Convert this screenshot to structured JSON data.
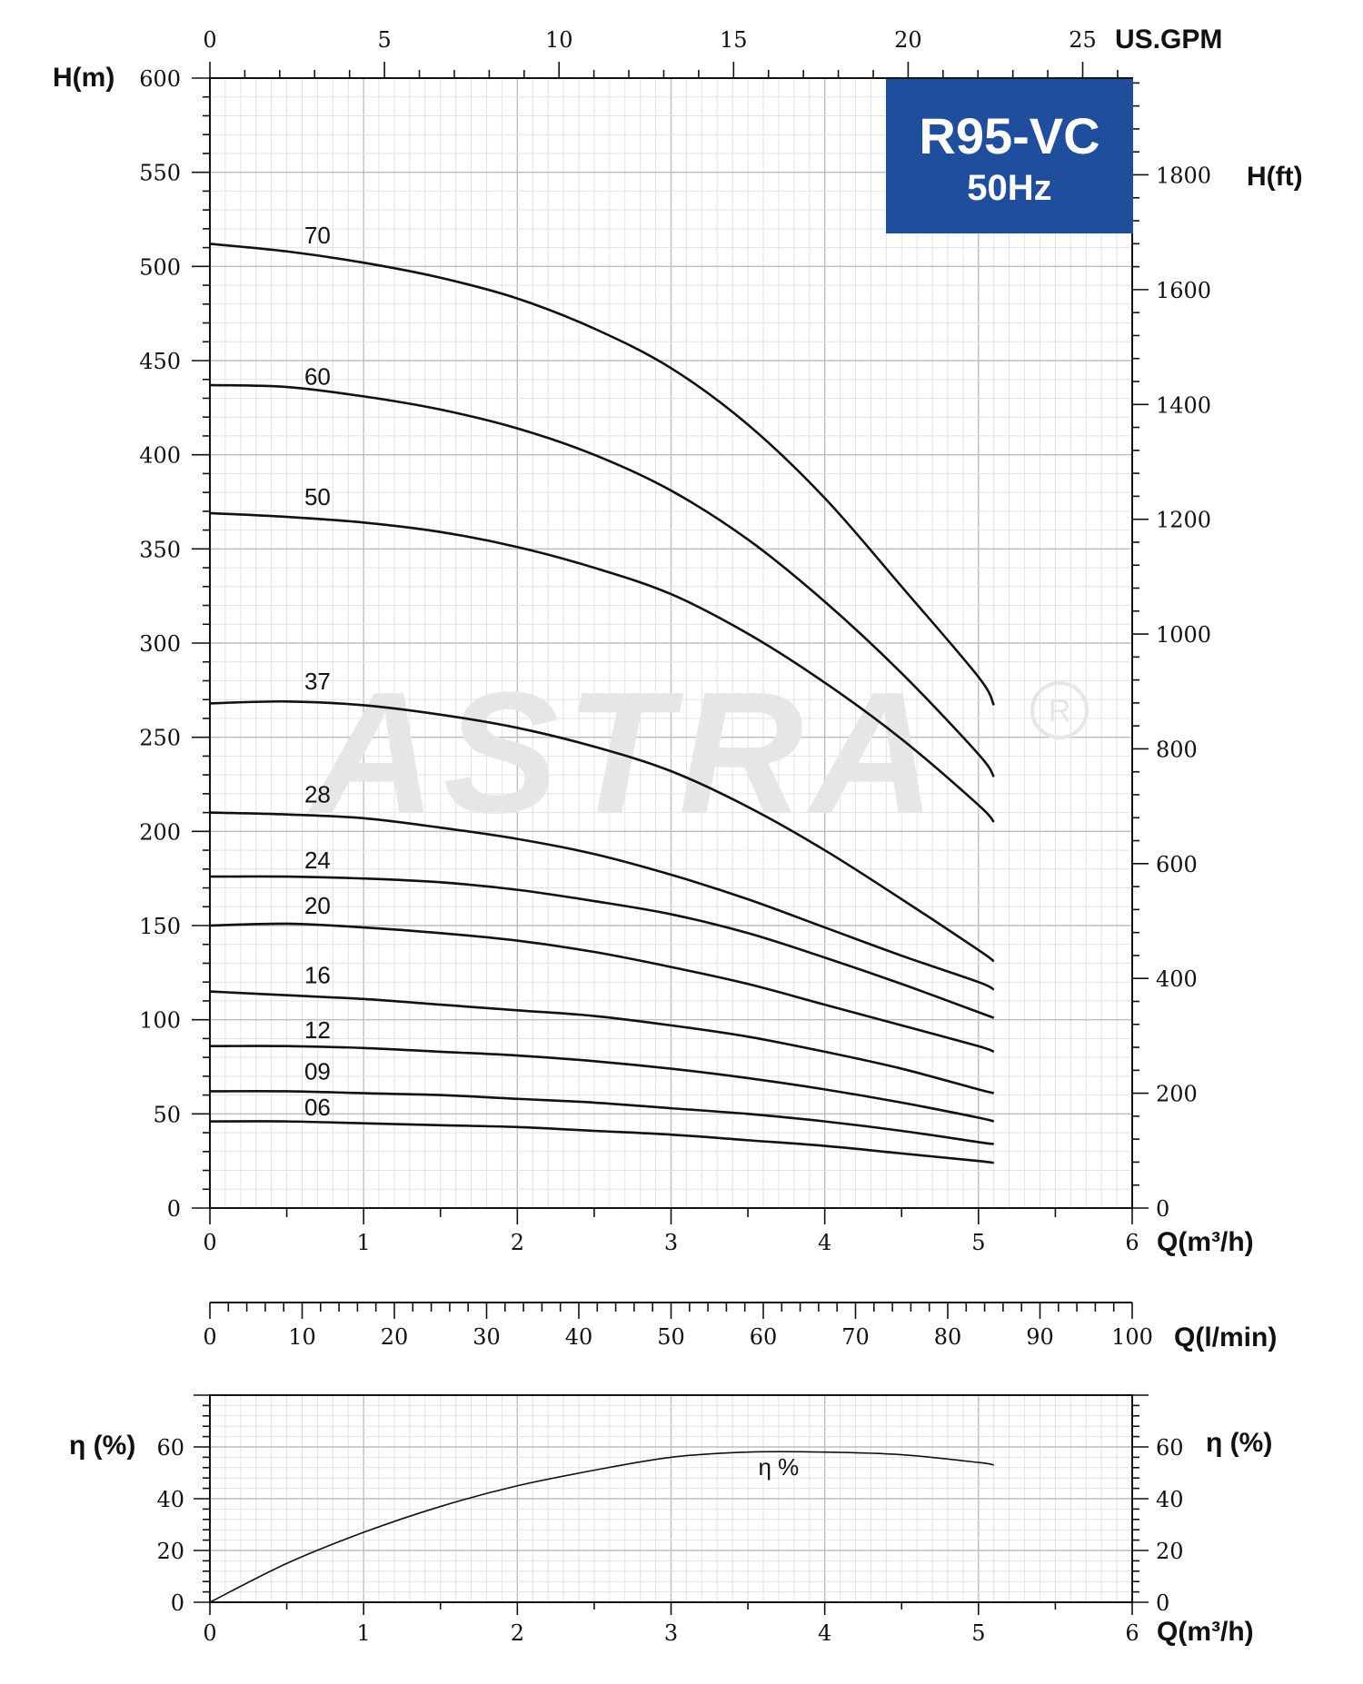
{
  "chart_data": [
    {
      "type": "line",
      "title": "R95-VC",
      "subtitle": "50Hz",
      "xlabel": "Q(m³/h)",
      "ylabel": "H(m)",
      "ylabel_right": "H(ft)",
      "xlabel_top": "US.GPM",
      "xlabel_lmin": "Q(l/min)",
      "xlim": [
        0,
        6
      ],
      "ylim": [
        0,
        600
      ],
      "x_ticks": [
        0,
        1,
        2,
        3,
        4,
        5,
        6
      ],
      "y_ticks": [
        0,
        50,
        100,
        150,
        200,
        250,
        300,
        350,
        400,
        450,
        500,
        550,
        600
      ],
      "ft_ticks": [
        0,
        200,
        400,
        600,
        800,
        1000,
        1200,
        1400,
        1600,
        1800
      ],
      "gpm_ticks": [
        0,
        5,
        10,
        15,
        20,
        25
      ],
      "lmin_ticks": [
        0,
        10,
        20,
        30,
        40,
        50,
        60,
        70,
        80,
        90,
        100
      ],
      "grid": true,
      "series": [
        {
          "name": "70",
          "x": [
            0,
            0.5,
            1,
            1.5,
            2,
            2.5,
            3,
            3.5,
            4,
            4.5,
            5,
            5.1
          ],
          "values": [
            512,
            508,
            502,
            494,
            483,
            467,
            446,
            416,
            377,
            330,
            282,
            267
          ]
        },
        {
          "name": "60",
          "x": [
            0,
            0.5,
            1,
            1.5,
            2,
            2.5,
            3,
            3.5,
            4,
            4.5,
            5,
            5.1
          ],
          "values": [
            437,
            436,
            431,
            424,
            414,
            400,
            381,
            355,
            322,
            284,
            241,
            229
          ]
        },
        {
          "name": "50",
          "x": [
            0,
            0.5,
            1,
            1.5,
            2,
            2.5,
            3,
            3.5,
            4,
            4.5,
            5,
            5.1
          ],
          "values": [
            369,
            367,
            364,
            359,
            351,
            340,
            326,
            305,
            279,
            249,
            214,
            205
          ]
        },
        {
          "name": "37",
          "x": [
            0,
            0.5,
            1,
            1.5,
            2,
            2.5,
            3,
            3.5,
            4,
            4.5,
            5,
            5.1
          ],
          "values": [
            268,
            269,
            267,
            262,
            255,
            245,
            232,
            213,
            190,
            164,
            137,
            131
          ]
        },
        {
          "name": "28",
          "x": [
            0,
            0.5,
            1,
            1.5,
            2,
            2.5,
            3,
            3.5,
            4,
            4.5,
            5,
            5.1
          ],
          "values": [
            210,
            209,
            207,
            202,
            196,
            188,
            177,
            164,
            149,
            134,
            120,
            116
          ]
        },
        {
          "name": "24",
          "x": [
            0,
            0.5,
            1,
            1.5,
            2,
            2.5,
            3,
            3.5,
            4,
            4.5,
            5,
            5.1
          ],
          "values": [
            176,
            176,
            175,
            173,
            169,
            163,
            156,
            146,
            133,
            119,
            104,
            101
          ]
        },
        {
          "name": "20",
          "x": [
            0,
            0.5,
            1,
            1.5,
            2,
            2.5,
            3,
            3.5,
            4,
            4.5,
            5,
            5.1
          ],
          "values": [
            150,
            151,
            149,
            146,
            142,
            136,
            128,
            119,
            108,
            97,
            86,
            83
          ]
        },
        {
          "name": "16",
          "x": [
            0,
            0.5,
            1,
            1.5,
            2,
            2.5,
            3,
            3.5,
            4,
            4.5,
            5,
            5.1
          ],
          "values": [
            115,
            113,
            111,
            108,
            105,
            102,
            97,
            91,
            83,
            74,
            63,
            61
          ]
        },
        {
          "name": "12",
          "x": [
            0,
            0.5,
            1,
            1.5,
            2,
            2.5,
            3,
            3.5,
            4,
            4.5,
            5,
            5.1
          ],
          "values": [
            86,
            86,
            85,
            83,
            81,
            78,
            74,
            69,
            63,
            56,
            48,
            46
          ]
        },
        {
          "name": "09",
          "x": [
            0,
            0.5,
            1,
            1.5,
            2,
            2.5,
            3,
            3.5,
            4,
            4.5,
            5,
            5.1
          ],
          "values": [
            62,
            62,
            61,
            60,
            58,
            56,
            53,
            50,
            46,
            41,
            35,
            34
          ]
        },
        {
          "name": "06",
          "x": [
            0,
            0.5,
            1,
            1.5,
            2,
            2.5,
            3,
            3.5,
            4,
            4.5,
            5,
            5.1
          ],
          "values": [
            46,
            46,
            45,
            44,
            43,
            41,
            39,
            36,
            33,
            29,
            25,
            24
          ]
        }
      ]
    },
    {
      "type": "line",
      "xlabel": "Q(m³/h)",
      "ylabel": "η (%)",
      "ylabel_right": "η (%)",
      "xlim": [
        0,
        6
      ],
      "ylim": [
        0,
        80
      ],
      "x_ticks": [
        0,
        1,
        2,
        3,
        4,
        5,
        6
      ],
      "y_ticks": [
        0,
        20,
        40,
        60
      ],
      "grid": true,
      "series": [
        {
          "name": "η %",
          "x": [
            0,
            0.5,
            1,
            1.5,
            2,
            2.5,
            3,
            3.5,
            4,
            4.5,
            5,
            5.1
          ],
          "values": [
            0,
            15,
            27,
            37,
            45,
            51,
            56,
            58,
            58,
            57,
            54,
            53
          ]
        }
      ]
    }
  ],
  "colors": {
    "badge": "#1f4e9e",
    "axis": "#111111",
    "grid_major": "#bdbdbd",
    "grid_minor": "#e2e2e2",
    "watermark": "#e6e6e6"
  },
  "watermark": "ASTRA"
}
